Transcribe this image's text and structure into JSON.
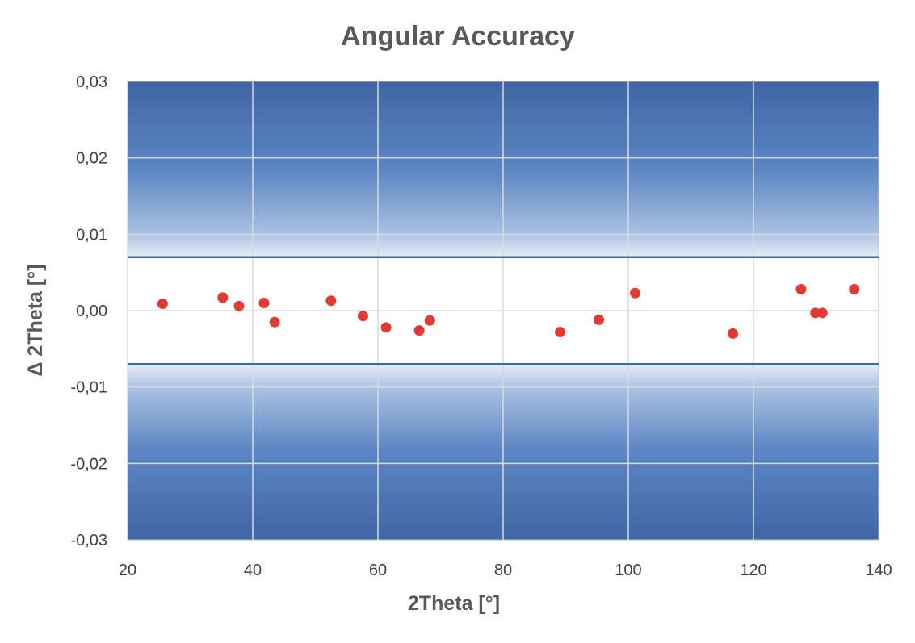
{
  "chart_data": {
    "type": "scatter",
    "title": "Angular Accuracy",
    "xlabel": "2Theta [°]",
    "ylabel": "Δ 2Theta [°]",
    "xlim": [
      20,
      140
    ],
    "ylim": [
      -0.03,
      0.03
    ],
    "x_ticks": [
      20,
      40,
      60,
      80,
      100,
      120,
      140
    ],
    "y_ticks": [
      -0.03,
      -0.02,
      -0.01,
      0.0,
      0.01,
      0.02,
      0.03
    ],
    "x_tick_labels": [
      "20",
      "40",
      "60",
      "80",
      "100",
      "120",
      "140"
    ],
    "y_tick_labels": [
      "-0,03",
      "-0,02",
      "-0,01",
      "0,00",
      "0,01",
      "0,02",
      "0,03"
    ],
    "grid": true,
    "tolerance_band": [
      -0.007,
      0.007
    ],
    "colors": {
      "points": "#e03a34",
      "limit_lines": "#3e68ad",
      "gradient_dark": "#3f66a5",
      "gradient_light": "#ffffff",
      "grid": "#d9d9d9",
      "title_text": "#595959"
    },
    "series": [
      {
        "points": [
          [
            25.6,
            0.0009
          ],
          [
            35.2,
            0.0017
          ],
          [
            37.8,
            0.0006
          ],
          [
            41.8,
            0.001
          ],
          [
            43.5,
            -0.0015
          ],
          [
            52.5,
            0.0013
          ],
          [
            57.6,
            -0.0007
          ],
          [
            61.3,
            -0.0022
          ],
          [
            66.6,
            -0.0026
          ],
          [
            68.3,
            -0.0013
          ],
          [
            89.1,
            -0.0028
          ],
          [
            95.3,
            -0.0012
          ],
          [
            101.1,
            0.0023
          ],
          [
            116.7,
            -0.003
          ],
          [
            127.6,
            0.0028
          ],
          [
            129.9,
            -0.0003
          ],
          [
            131.0,
            -0.0003
          ],
          [
            136.1,
            0.0028
          ]
        ]
      }
    ]
  }
}
